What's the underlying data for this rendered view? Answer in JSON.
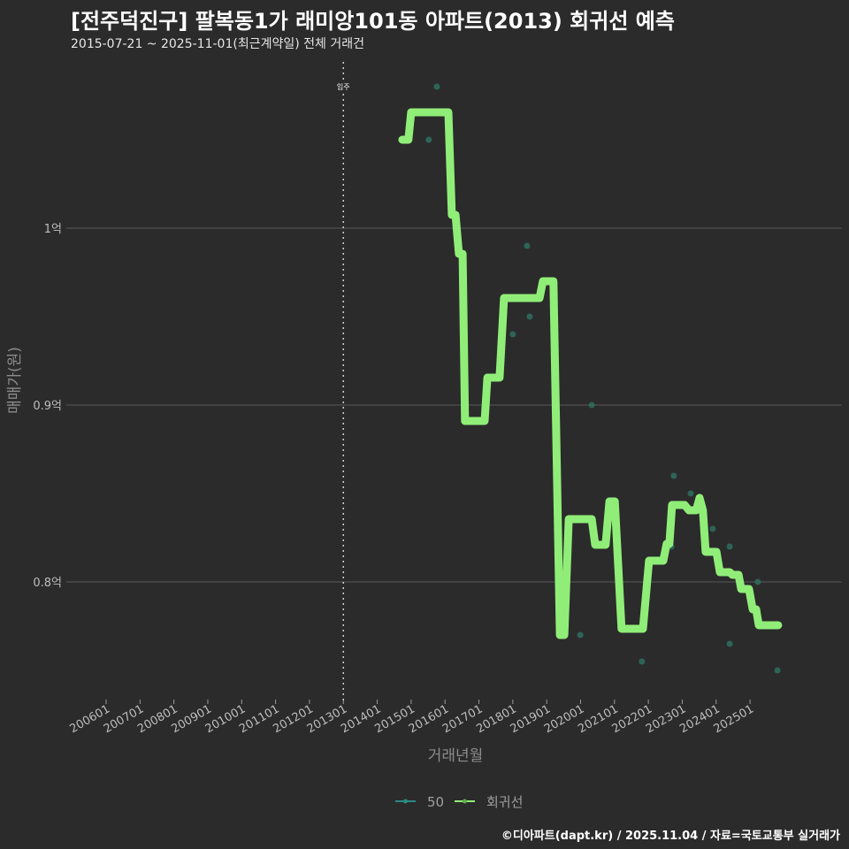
{
  "title": "[전주덕진구] 팔복동1가 래미앙101동 아파트(2013) 회귀선 예측",
  "subtitle": "2015-07-21 ~ 2025-11-01(최근계약일) 전체 거래건",
  "footer": "©디아파트(dapt.kr) / 2025.11.04 / 자료=국토교통부 실거래가",
  "colors": {
    "background": "#2b2b2b",
    "regression": "#90ee78",
    "points": "#2e6e5e",
    "grid": "#5a5a5a"
  },
  "chart_data": {
    "type": "line",
    "xlabel": "거래년월",
    "ylabel": "매매가(원)",
    "xlim": [
      2005.0,
      2027.1
    ],
    "ylim": [
      0.735,
      1.094
    ],
    "x_ticks": [
      2006,
      2007,
      2008,
      2009,
      2010,
      2011,
      2012,
      2013,
      2014,
      2015,
      2016,
      2017,
      2018,
      2019,
      2020,
      2021,
      2022,
      2023,
      2024,
      2025
    ],
    "x_tick_labels": [
      "200601",
      "200701",
      "200801",
      "200901",
      "201001",
      "201101",
      "201201",
      "201301",
      "201401",
      "201501",
      "201601",
      "201701",
      "201801",
      "201901",
      "202001",
      "202101",
      "202201",
      "202301",
      "202401",
      "202501"
    ],
    "y_ticks": [
      0.8,
      0.9,
      1.0
    ],
    "y_tick_labels": [
      "0.8억",
      "0.9억",
      "1억"
    ],
    "annotation": {
      "x": 2013,
      "label": "입주"
    },
    "legend": {
      "position": "bottom",
      "entries": [
        "50",
        "회귀선"
      ]
    },
    "series": [
      {
        "name": "50",
        "kind": "scatter",
        "points": [
          [
            2015.76,
            1.08
          ],
          [
            2015.52,
            1.05
          ],
          [
            2018.42,
            0.99
          ],
          [
            2018.5,
            0.95
          ],
          [
            2018.0,
            0.94
          ],
          [
            2020.33,
            0.9
          ],
          [
            2019.99,
            0.77
          ],
          [
            2021.81,
            0.755
          ],
          [
            2022.75,
            0.86
          ],
          [
            2023.25,
            0.85
          ],
          [
            2023.9,
            0.83
          ],
          [
            2024.4,
            0.82
          ],
          [
            2022.68,
            0.82
          ],
          [
            2025.23,
            0.8
          ],
          [
            2024.4,
            0.765
          ],
          [
            2025.81,
            0.75
          ]
        ]
      },
      {
        "name": "회귀선",
        "kind": "line",
        "points": [
          [
            2014.74,
            1.05
          ],
          [
            2014.92,
            1.05
          ],
          [
            2015.0,
            1.0655
          ],
          [
            2016.1,
            1.0655
          ],
          [
            2016.2,
            1.0075
          ],
          [
            2016.31,
            1.0075
          ],
          [
            2016.41,
            0.9855
          ],
          [
            2016.52,
            0.9855
          ],
          [
            2016.59,
            0.891
          ],
          [
            2017.17,
            0.891
          ],
          [
            2017.25,
            0.9155
          ],
          [
            2017.61,
            0.9155
          ],
          [
            2017.74,
            0.9605
          ],
          [
            2018.79,
            0.9605
          ],
          [
            2018.89,
            0.97
          ],
          [
            2019.2,
            0.97
          ],
          [
            2019.39,
            0.77
          ],
          [
            2019.52,
            0.77
          ],
          [
            2019.65,
            0.8355
          ],
          [
            2020.33,
            0.8355
          ],
          [
            2020.43,
            0.821
          ],
          [
            2020.74,
            0.821
          ],
          [
            2020.85,
            0.8455
          ],
          [
            2021.01,
            0.8455
          ],
          [
            2021.21,
            0.7735
          ],
          [
            2021.84,
            0.7735
          ],
          [
            2022.02,
            0.812
          ],
          [
            2022.44,
            0.812
          ],
          [
            2022.54,
            0.8215
          ],
          [
            2022.62,
            0.8215
          ],
          [
            2022.7,
            0.8435
          ],
          [
            2023.07,
            0.8435
          ],
          [
            2023.2,
            0.8405
          ],
          [
            2023.41,
            0.8405
          ],
          [
            2023.51,
            0.8475
          ],
          [
            2023.61,
            0.8405
          ],
          [
            2023.69,
            0.817
          ],
          [
            2024.01,
            0.817
          ],
          [
            2024.11,
            0.8055
          ],
          [
            2024.4,
            0.8055
          ],
          [
            2024.48,
            0.804
          ],
          [
            2024.66,
            0.804
          ],
          [
            2024.74,
            0.796
          ],
          [
            2024.97,
            0.796
          ],
          [
            2025.08,
            0.7845
          ],
          [
            2025.18,
            0.7845
          ],
          [
            2025.26,
            0.7755
          ],
          [
            2025.83,
            0.7755
          ]
        ]
      }
    ]
  }
}
